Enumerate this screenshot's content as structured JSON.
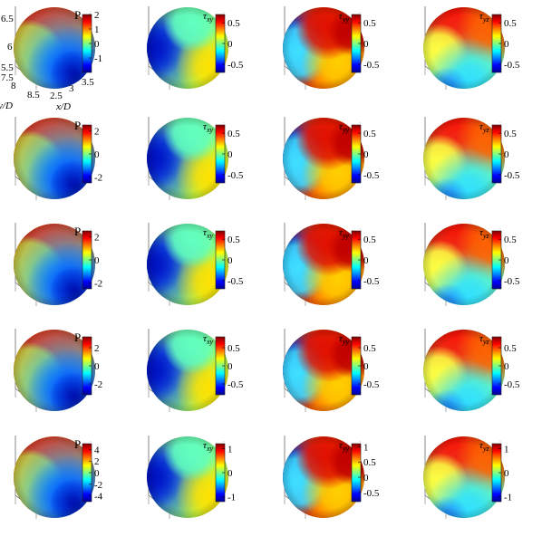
{
  "figure": {
    "colormap": "jet",
    "colormap_stops": [
      "#00008f",
      "#0000ff",
      "#0080ff",
      "#00ffff",
      "#80ff80",
      "#ffff00",
      "#ff8000",
      "#ff0000",
      "#800000"
    ],
    "axis_labels": {
      "x": "x/D",
      "y": "y/D"
    },
    "axis_ticks": {
      "z": [
        "6.5",
        "6",
        "5.5"
      ],
      "y": [
        "7.5",
        "8",
        "8.5"
      ],
      "x": [
        "2.5",
        "3",
        "3.5"
      ]
    }
  },
  "chart_data": [
    {
      "type": "heatmap",
      "row": 0,
      "col": 0,
      "quantity": "P",
      "pattern": "pressure",
      "colorbar": {
        "label": "P",
        "ticks": [
          "2",
          "1",
          "0",
          "-1"
        ],
        "ticks_at": [
          2,
          1,
          0,
          -1
        ],
        "clim": [
          -2,
          2
        ]
      }
    },
    {
      "type": "heatmap",
      "row": 0,
      "col": 1,
      "quantity": "τxy",
      "pattern": "txy",
      "colorbar": {
        "label": "τxy",
        "ticks": [
          "0.5",
          "0",
          "-0.5"
        ],
        "ticks_at": [
          0.5,
          0,
          -0.5
        ],
        "clim": [
          -0.7,
          0.7
        ]
      }
    },
    {
      "type": "heatmap",
      "row": 0,
      "col": 2,
      "quantity": "τyy",
      "pattern": "tyy",
      "colorbar": {
        "label": "τyy",
        "ticks": [
          "0.5",
          "0",
          "-0.5"
        ],
        "ticks_at": [
          0.5,
          0,
          -0.5
        ],
        "clim": [
          -0.7,
          0.7
        ]
      }
    },
    {
      "type": "heatmap",
      "row": 0,
      "col": 3,
      "quantity": "τyz",
      "pattern": "tyz",
      "colorbar": {
        "label": "τyz",
        "ticks": [
          "0.5",
          "0",
          "-0.5"
        ],
        "ticks_at": [
          0.5,
          0,
          -0.5
        ],
        "clim": [
          -0.7,
          0.7
        ]
      }
    },
    {
      "type": "heatmap",
      "row": 1,
      "col": 0,
      "quantity": "P",
      "pattern": "pressure",
      "colorbar": {
        "label": "P",
        "ticks": [
          "2",
          "0",
          "-2"
        ],
        "ticks_at": [
          2,
          0,
          -2
        ],
        "clim": [
          -2.5,
          2.5
        ]
      }
    },
    {
      "type": "heatmap",
      "row": 1,
      "col": 1,
      "quantity": "τxy",
      "pattern": "txy",
      "colorbar": {
        "label": "τxy",
        "ticks": [
          "0.5",
          "0",
          "-0.5"
        ],
        "ticks_at": [
          0.5,
          0,
          -0.5
        ],
        "clim": [
          -0.7,
          0.7
        ]
      }
    },
    {
      "type": "heatmap",
      "row": 1,
      "col": 2,
      "quantity": "τyy",
      "pattern": "tyy",
      "colorbar": {
        "label": "τyy",
        "ticks": [
          "0.5",
          "0",
          "-0.5"
        ],
        "ticks_at": [
          0.5,
          0,
          -0.5
        ],
        "clim": [
          -0.7,
          0.7
        ]
      }
    },
    {
      "type": "heatmap",
      "row": 1,
      "col": 3,
      "quantity": "τyz",
      "pattern": "tyz",
      "colorbar": {
        "label": "τyz",
        "ticks": [
          "0.5",
          "0",
          "-0.5"
        ],
        "ticks_at": [
          0.5,
          0,
          -0.5
        ],
        "clim": [
          -0.7,
          0.7
        ]
      }
    },
    {
      "type": "heatmap",
      "row": 2,
      "col": 0,
      "quantity": "P",
      "pattern": "pressure",
      "colorbar": {
        "label": "P",
        "ticks": [
          "2",
          "0",
          "-2"
        ],
        "ticks_at": [
          2,
          0,
          -2
        ],
        "clim": [
          -2.5,
          2.5
        ]
      }
    },
    {
      "type": "heatmap",
      "row": 2,
      "col": 1,
      "quantity": "τxy",
      "pattern": "txy",
      "colorbar": {
        "label": "τxy",
        "ticks": [
          "0.5",
          "0",
          "-0.5"
        ],
        "ticks_at": [
          0.5,
          0,
          -0.5
        ],
        "clim": [
          -0.7,
          0.7
        ]
      }
    },
    {
      "type": "heatmap",
      "row": 2,
      "col": 2,
      "quantity": "τyy",
      "pattern": "tyy",
      "colorbar": {
        "label": "τyy",
        "ticks": [
          "0.5",
          "0",
          "-0.5"
        ],
        "ticks_at": [
          0.5,
          0,
          -0.5
        ],
        "clim": [
          -0.7,
          0.7
        ]
      }
    },
    {
      "type": "heatmap",
      "row": 2,
      "col": 3,
      "quantity": "τyz",
      "pattern": "tyz",
      "colorbar": {
        "label": "τyz",
        "ticks": [
          "0.5",
          "0",
          "-0.5"
        ],
        "ticks_at": [
          0.5,
          0,
          -0.5
        ],
        "clim": [
          -0.7,
          0.7
        ]
      }
    },
    {
      "type": "heatmap",
      "row": 3,
      "col": 0,
      "quantity": "P",
      "pattern": "pressure",
      "colorbar": {
        "label": "P",
        "ticks": [
          "2",
          "0",
          "-2"
        ],
        "ticks_at": [
          2,
          0,
          -2
        ],
        "clim": [
          -3.2,
          3.2
        ]
      }
    },
    {
      "type": "heatmap",
      "row": 3,
      "col": 1,
      "quantity": "τxy",
      "pattern": "txy",
      "colorbar": {
        "label": "τxy",
        "ticks": [
          "0.5",
          "0",
          "-0.5"
        ],
        "ticks_at": [
          0.5,
          0,
          -0.5
        ],
        "clim": [
          -0.8,
          0.8
        ]
      }
    },
    {
      "type": "heatmap",
      "row": 3,
      "col": 2,
      "quantity": "τyy",
      "pattern": "tyy",
      "colorbar": {
        "label": "τyy",
        "ticks": [
          "0.5",
          "0",
          "-0.5"
        ],
        "ticks_at": [
          0.5,
          0,
          -0.5
        ],
        "clim": [
          -0.8,
          0.8
        ]
      }
    },
    {
      "type": "heatmap",
      "row": 3,
      "col": 3,
      "quantity": "τyz",
      "pattern": "tyz",
      "colorbar": {
        "label": "τyz",
        "ticks": [
          "0.5",
          "0",
          "-0.5"
        ],
        "ticks_at": [
          0.5,
          0,
          -0.5
        ],
        "clim": [
          -0.8,
          0.8
        ]
      }
    },
    {
      "type": "heatmap",
      "row": 4,
      "col": 0,
      "quantity": "P",
      "pattern": "pressure",
      "colorbar": {
        "label": "P",
        "ticks": [
          "4",
          "2",
          "0",
          "-2",
          "-4"
        ],
        "ticks_at": [
          4,
          2,
          0,
          -2,
          -4
        ],
        "clim": [
          -5,
          5
        ]
      }
    },
    {
      "type": "heatmap",
      "row": 4,
      "col": 1,
      "quantity": "τxy",
      "pattern": "txy",
      "colorbar": {
        "label": "τxy",
        "ticks": [
          "1",
          "0",
          "-1"
        ],
        "ticks_at": [
          1,
          0,
          -1
        ],
        "clim": [
          -1.2,
          1.2
        ]
      }
    },
    {
      "type": "heatmap",
      "row": 4,
      "col": 2,
      "quantity": "τyy",
      "pattern": "tyy",
      "colorbar": {
        "label": "τyy",
        "ticks": [
          "1",
          "0.5",
          "0",
          "-0.5"
        ],
        "ticks_at": [
          1,
          0.5,
          0,
          -0.5
        ],
        "clim": [
          -0.8,
          1.1
        ]
      }
    },
    {
      "type": "heatmap",
      "row": 4,
      "col": 3,
      "quantity": "τyz",
      "pattern": "tyz",
      "colorbar": {
        "label": "τyz",
        "ticks": [
          "1",
          "0",
          "-1"
        ],
        "ticks_at": [
          1,
          0,
          -1
        ],
        "clim": [
          -1.2,
          1.2
        ]
      }
    }
  ]
}
